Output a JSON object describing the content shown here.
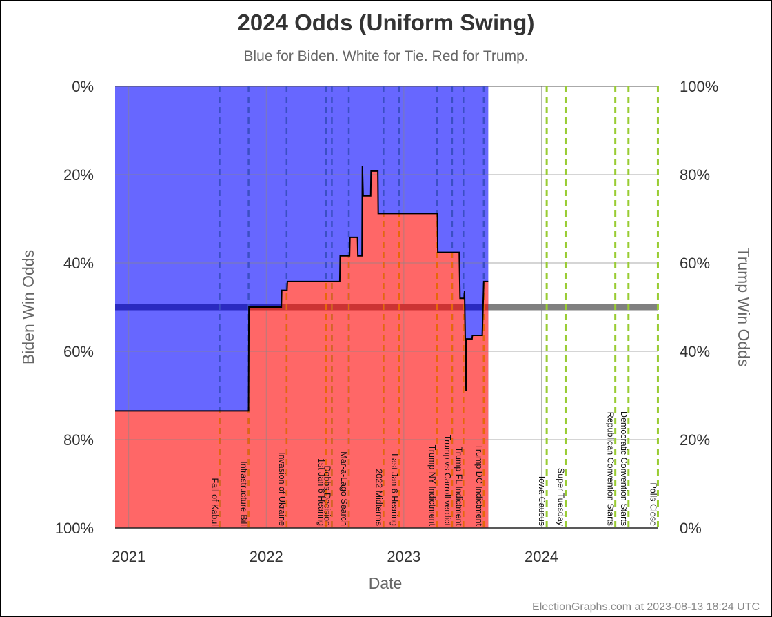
{
  "chart_data": {
    "type": "area",
    "title": "2024 Odds (Uniform Swing)",
    "subtitle": "Blue for Biden. White for Tie. Red for Trump.",
    "xlabel": "Date",
    "ylabel_left": "Biden Win Odds",
    "ylabel_right": "Trump Win Odds",
    "x_ticks": [
      {
        "date": "2021-01-01",
        "label": "2021"
      },
      {
        "date": "2022-01-01",
        "label": "2022"
      },
      {
        "date": "2023-01-01",
        "label": "2023"
      },
      {
        "date": "2024-01-01",
        "label": "2024"
      }
    ],
    "xlim": [
      "2020-11-26",
      "2024-11-06"
    ],
    "data_end": "2023-08-13",
    "y_ticks_left": [
      "0%",
      "20%",
      "40%",
      "60%",
      "80%",
      "100%"
    ],
    "y_ticks_right": [
      "100%",
      "80%",
      "60%",
      "40%",
      "20%",
      "0%"
    ],
    "ylim": [
      0,
      100
    ],
    "grid": true,
    "colors": {
      "biden": "#6767ff",
      "trump": "#ff6767",
      "tie": "#ffffff",
      "line": "#000000",
      "past_event": "#3b4fc4",
      "past_event_in_red": "#e8670a",
      "future_event": "#99cc33",
      "midline": "#2a2ac0",
      "midline_in_red": "#cc3333",
      "midline_future": "#808080"
    },
    "series": [
      {
        "name": "Trump Win Odds",
        "points": [
          [
            "2020-11-26",
            26.5
          ],
          [
            "2021-11-15",
            26.5
          ],
          [
            "2021-11-16",
            50.0
          ],
          [
            "2022-02-10",
            50.0
          ],
          [
            "2022-02-11",
            53.8
          ],
          [
            "2022-02-25",
            53.8
          ],
          [
            "2022-02-26",
            55.8
          ],
          [
            "2022-07-15",
            55.8
          ],
          [
            "2022-07-16",
            61.6
          ],
          [
            "2022-08-10",
            61.6
          ],
          [
            "2022-08-11",
            65.8
          ],
          [
            "2022-08-31",
            65.8
          ],
          [
            "2022-09-01",
            61.6
          ],
          [
            "2022-09-12",
            61.6
          ],
          [
            "2022-09-13",
            82.0
          ],
          [
            "2022-09-15",
            75.2
          ],
          [
            "2022-10-05",
            75.2
          ],
          [
            "2022-10-06",
            80.8
          ],
          [
            "2022-10-24",
            80.8
          ],
          [
            "2022-10-25",
            71.2
          ],
          [
            "2023-03-31",
            71.2
          ],
          [
            "2023-04-01",
            62.4
          ],
          [
            "2023-05-28",
            62.4
          ],
          [
            "2023-05-30",
            52.0
          ],
          [
            "2023-06-10",
            52.0
          ],
          [
            "2023-06-11",
            53.6
          ],
          [
            "2023-06-15",
            31.0
          ],
          [
            "2023-06-16",
            42.8
          ],
          [
            "2023-07-01",
            42.8
          ],
          [
            "2023-07-02",
            43.6
          ],
          [
            "2023-07-28",
            43.6
          ],
          [
            "2023-08-01",
            55.8
          ],
          [
            "2023-08-13",
            55.8
          ]
        ]
      }
    ],
    "events": [
      {
        "date": "2021-08-30",
        "label": "Fall of Kabul",
        "future": false
      },
      {
        "date": "2021-11-15",
        "label": "Infrastructure Bill",
        "future": false
      },
      {
        "date": "2022-02-24",
        "label": "Invasion of Ukraine",
        "future": false
      },
      {
        "date": "2022-06-09",
        "label": "1st Jan 6 Hearing",
        "future": false
      },
      {
        "date": "2022-06-24",
        "label": "Dobbs Decision",
        "future": false
      },
      {
        "date": "2022-08-08",
        "label": "Mar-a-Lago Search",
        "future": false
      },
      {
        "date": "2022-11-08",
        "label": "2022 Midterms",
        "future": false
      },
      {
        "date": "2022-12-19",
        "label": "Last Jan 6 Hearing",
        "future": false
      },
      {
        "date": "2023-03-30",
        "label": "Trump NY Indictment",
        "future": false
      },
      {
        "date": "2023-05-09",
        "label": "Trump vs Carroll verdict",
        "future": false
      },
      {
        "date": "2023-06-08",
        "label": "Trump FL Indictment",
        "future": false
      },
      {
        "date": "2023-08-01",
        "label": "Trump DC Indictment",
        "future": false
      },
      {
        "date": "2024-01-15",
        "label": "Iowa Caucus",
        "future": true
      },
      {
        "date": "2024-03-05",
        "label": "Super Tuesday",
        "future": true
      },
      {
        "date": "2024-07-15",
        "label": "Republican Convention Starts",
        "future": true
      },
      {
        "date": "2024-08-19",
        "label": "Democratic Convention Starts",
        "future": true
      },
      {
        "date": "2024-11-05",
        "label": "Polls Close",
        "future": true
      }
    ]
  },
  "footer": "ElectionGraphs.com at 2023-08-13 18:24 UTC"
}
